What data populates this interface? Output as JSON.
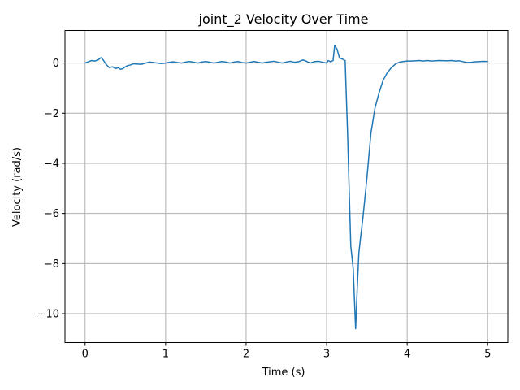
{
  "chart_data": {
    "type": "line",
    "title": "joint_2 Velocity Over Time",
    "xlabel": "Time (s)",
    "ylabel": "Velocity (rad/s)",
    "xlim": [
      -0.25,
      5.25
    ],
    "ylim": [
      -11.15,
      1.3
    ],
    "xticks": [
      0,
      1,
      2,
      3,
      4,
      5
    ],
    "xtick_labels": [
      "0",
      "1",
      "2",
      "3",
      "4",
      "5"
    ],
    "yticks": [
      0,
      -2,
      -4,
      -6,
      -8,
      -10
    ],
    "ytick_labels": [
      "0",
      "−2",
      "−4",
      "−6",
      "−8",
      "−10"
    ],
    "grid": true,
    "series": [
      {
        "color": "#1f77b4",
        "x": [
          0.0,
          0.04,
          0.08,
          0.12,
          0.16,
          0.2,
          0.23,
          0.26,
          0.3,
          0.34,
          0.38,
          0.41,
          0.44,
          0.47,
          0.5,
          0.53,
          0.56,
          0.6,
          0.65,
          0.7,
          0.75,
          0.8,
          0.85,
          0.9,
          0.95,
          1.0,
          1.05,
          1.1,
          1.15,
          1.2,
          1.25,
          1.3,
          1.35,
          1.4,
          1.45,
          1.5,
          1.55,
          1.6,
          1.65,
          1.7,
          1.75,
          1.8,
          1.85,
          1.9,
          1.95,
          2.0,
          2.05,
          2.1,
          2.15,
          2.2,
          2.25,
          2.3,
          2.35,
          2.4,
          2.45,
          2.5,
          2.55,
          2.6,
          2.65,
          2.7,
          2.73,
          2.76,
          2.8,
          2.85,
          2.9,
          2.95,
          3.0,
          3.02,
          3.05,
          3.08,
          3.1,
          3.13,
          3.16,
          3.2,
          3.23,
          3.26,
          3.3,
          3.33,
          3.36,
          3.38,
          3.4,
          3.42,
          3.45,
          3.5,
          3.55,
          3.6,
          3.65,
          3.7,
          3.75,
          3.8,
          3.85,
          3.9,
          3.95,
          4.0,
          4.05,
          4.1,
          4.15,
          4.2,
          4.25,
          4.3,
          4.4,
          4.5,
          4.55,
          4.6,
          4.65,
          4.7,
          4.75,
          4.8,
          4.85,
          4.9,
          4.95,
          5.0
        ],
        "y": [
          0.0,
          0.05,
          0.1,
          0.08,
          0.12,
          0.22,
          0.1,
          -0.05,
          -0.18,
          -0.15,
          -0.22,
          -0.18,
          -0.25,
          -0.22,
          -0.15,
          -0.1,
          -0.08,
          -0.03,
          -0.04,
          -0.05,
          0.0,
          0.04,
          0.02,
          0.0,
          -0.02,
          0.0,
          0.03,
          0.05,
          0.02,
          0.0,
          0.04,
          0.06,
          0.03,
          0.0,
          0.04,
          0.06,
          0.03,
          0.0,
          0.03,
          0.06,
          0.04,
          0.0,
          0.04,
          0.06,
          0.02,
          0.0,
          0.03,
          0.06,
          0.03,
          0.0,
          0.03,
          0.05,
          0.07,
          0.03,
          0.0,
          0.04,
          0.07,
          0.03,
          0.05,
          0.12,
          0.1,
          0.05,
          0.0,
          0.06,
          0.07,
          0.03,
          0.0,
          0.1,
          0.05,
          0.1,
          0.7,
          0.55,
          0.2,
          0.15,
          0.1,
          -2.8,
          -7.3,
          -8.2,
          -10.6,
          -9.0,
          -7.6,
          -7.0,
          -6.2,
          -4.6,
          -2.8,
          -1.8,
          -1.2,
          -0.7,
          -0.4,
          -0.2,
          -0.05,
          0.03,
          0.06,
          0.08,
          0.08,
          0.09,
          0.1,
          0.08,
          0.1,
          0.08,
          0.1,
          0.09,
          0.1,
          0.08,
          0.09,
          0.05,
          0.02,
          0.03,
          0.05,
          0.06,
          0.07,
          0.06
        ]
      }
    ]
  }
}
